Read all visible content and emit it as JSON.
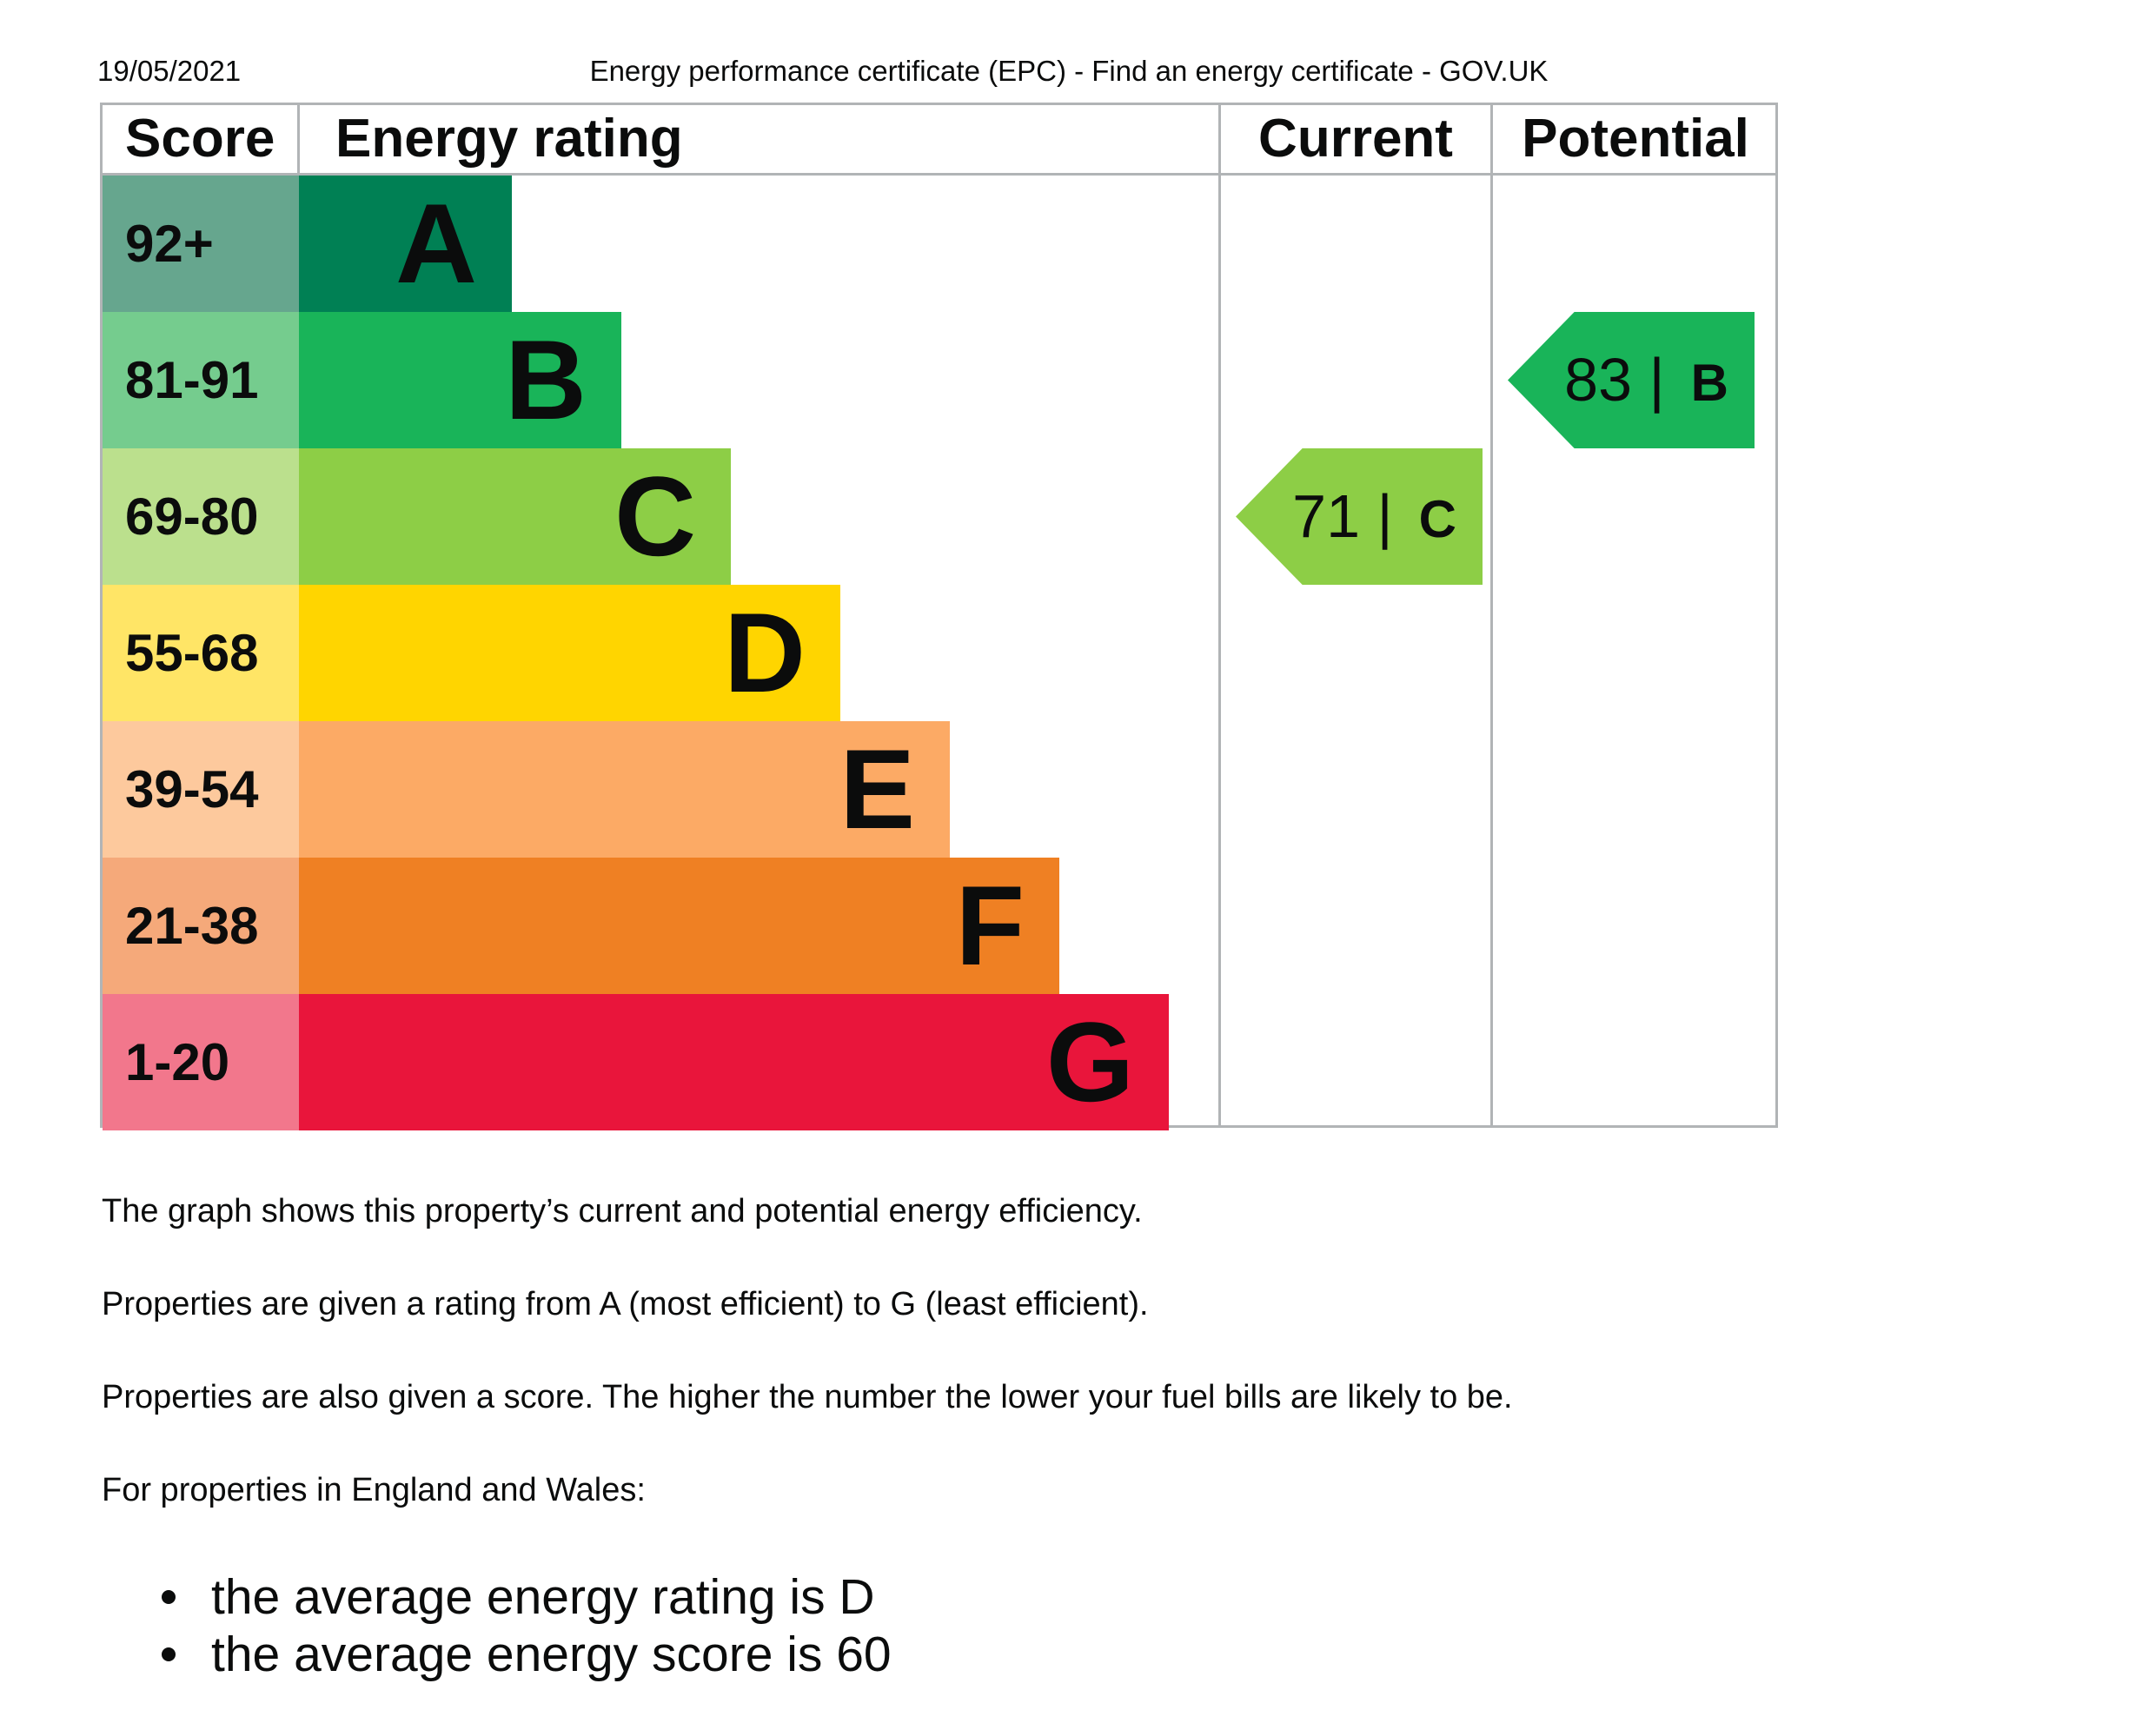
{
  "print_header": {
    "date": "19/05/2021",
    "title": "Energy performance certificate (EPC) - Find an energy certificate - GOV.UK"
  },
  "epc_graph": {
    "headers": {
      "score": "Score",
      "energy_rating": "Energy rating",
      "current": "Current",
      "potential": "Potential"
    },
    "bands": [
      {
        "score": "92+",
        "letter": "A",
        "color": "#008054",
        "score_bg": "#66a68e"
      },
      {
        "score": "81-91",
        "letter": "B",
        "color": "#19b459",
        "score_bg": "#75cc8e"
      },
      {
        "score": "69-80",
        "letter": "C",
        "color": "#8dce46",
        "score_bg": "#bbe08d"
      },
      {
        "score": "55-68",
        "letter": "D",
        "color": "#ffd500",
        "score_bg": "#ffe566"
      },
      {
        "score": "39-54",
        "letter": "E",
        "color": "#fcaa65",
        "score_bg": "#fdc99d"
      },
      {
        "score": "21-38",
        "letter": "F",
        "color": "#ef8023",
        "score_bg": "#f5a97a"
      },
      {
        "score": "1-20",
        "letter": "G",
        "color": "#e9153b",
        "score_bg": "#f2778c"
      }
    ],
    "current": {
      "score": "71 |",
      "letter": "C",
      "band_index": 2,
      "color": "#8dce46"
    },
    "potential": {
      "score": "83 |",
      "letter": "B",
      "band_index": 1,
      "color": "#19b459"
    }
  },
  "text": {
    "p1": "The graph shows this property’s current and potential energy efficiency.",
    "p2": "Properties are given a rating from A (most efficient) to G (least efficient).",
    "p3": "Properties are also given a score. The higher the number the lower your fuel bills are likely to be.",
    "p4": "For properties in England and Wales:",
    "list": [
      "the average energy rating is D",
      "the average energy score is 60"
    ]
  }
}
